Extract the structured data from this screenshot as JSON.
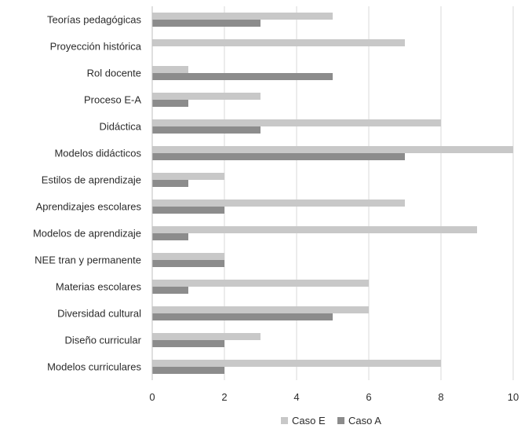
{
  "chart_data": {
    "type": "bar",
    "orientation": "horizontal",
    "categories": [
      "Teorías pedagógicas",
      "Proyección histórica",
      "Rol docente",
      "Proceso E-A",
      "Didáctica",
      "Modelos didácticos",
      "Estilos de aprendizaje",
      "Aprendizajes escolares",
      "Modelos de aprendizaje",
      "NEE tran y permanente",
      "Materias escolares",
      "Diversidad cultural",
      "Diseño curricular",
      "Modelos curriculares"
    ],
    "series": [
      {
        "name": "Caso E",
        "color": "#c8c8c8",
        "values": [
          5,
          7,
          1,
          3,
          8,
          10,
          2,
          7,
          9,
          2,
          6,
          6,
          3,
          8
        ]
      },
      {
        "name": "Caso A",
        "color": "#8c8c8c",
        "values": [
          3,
          0,
          5,
          1,
          3,
          7,
          1,
          2,
          1,
          2,
          1,
          5,
          2,
          2
        ]
      }
    ],
    "xlim": [
      0,
      10
    ],
    "xticks": [
      "0",
      "2",
      "4",
      "6",
      "8",
      "10"
    ],
    "grid": true,
    "legend_position": "bottom-center",
    "title": "",
    "xlabel": "",
    "ylabel": ""
  }
}
